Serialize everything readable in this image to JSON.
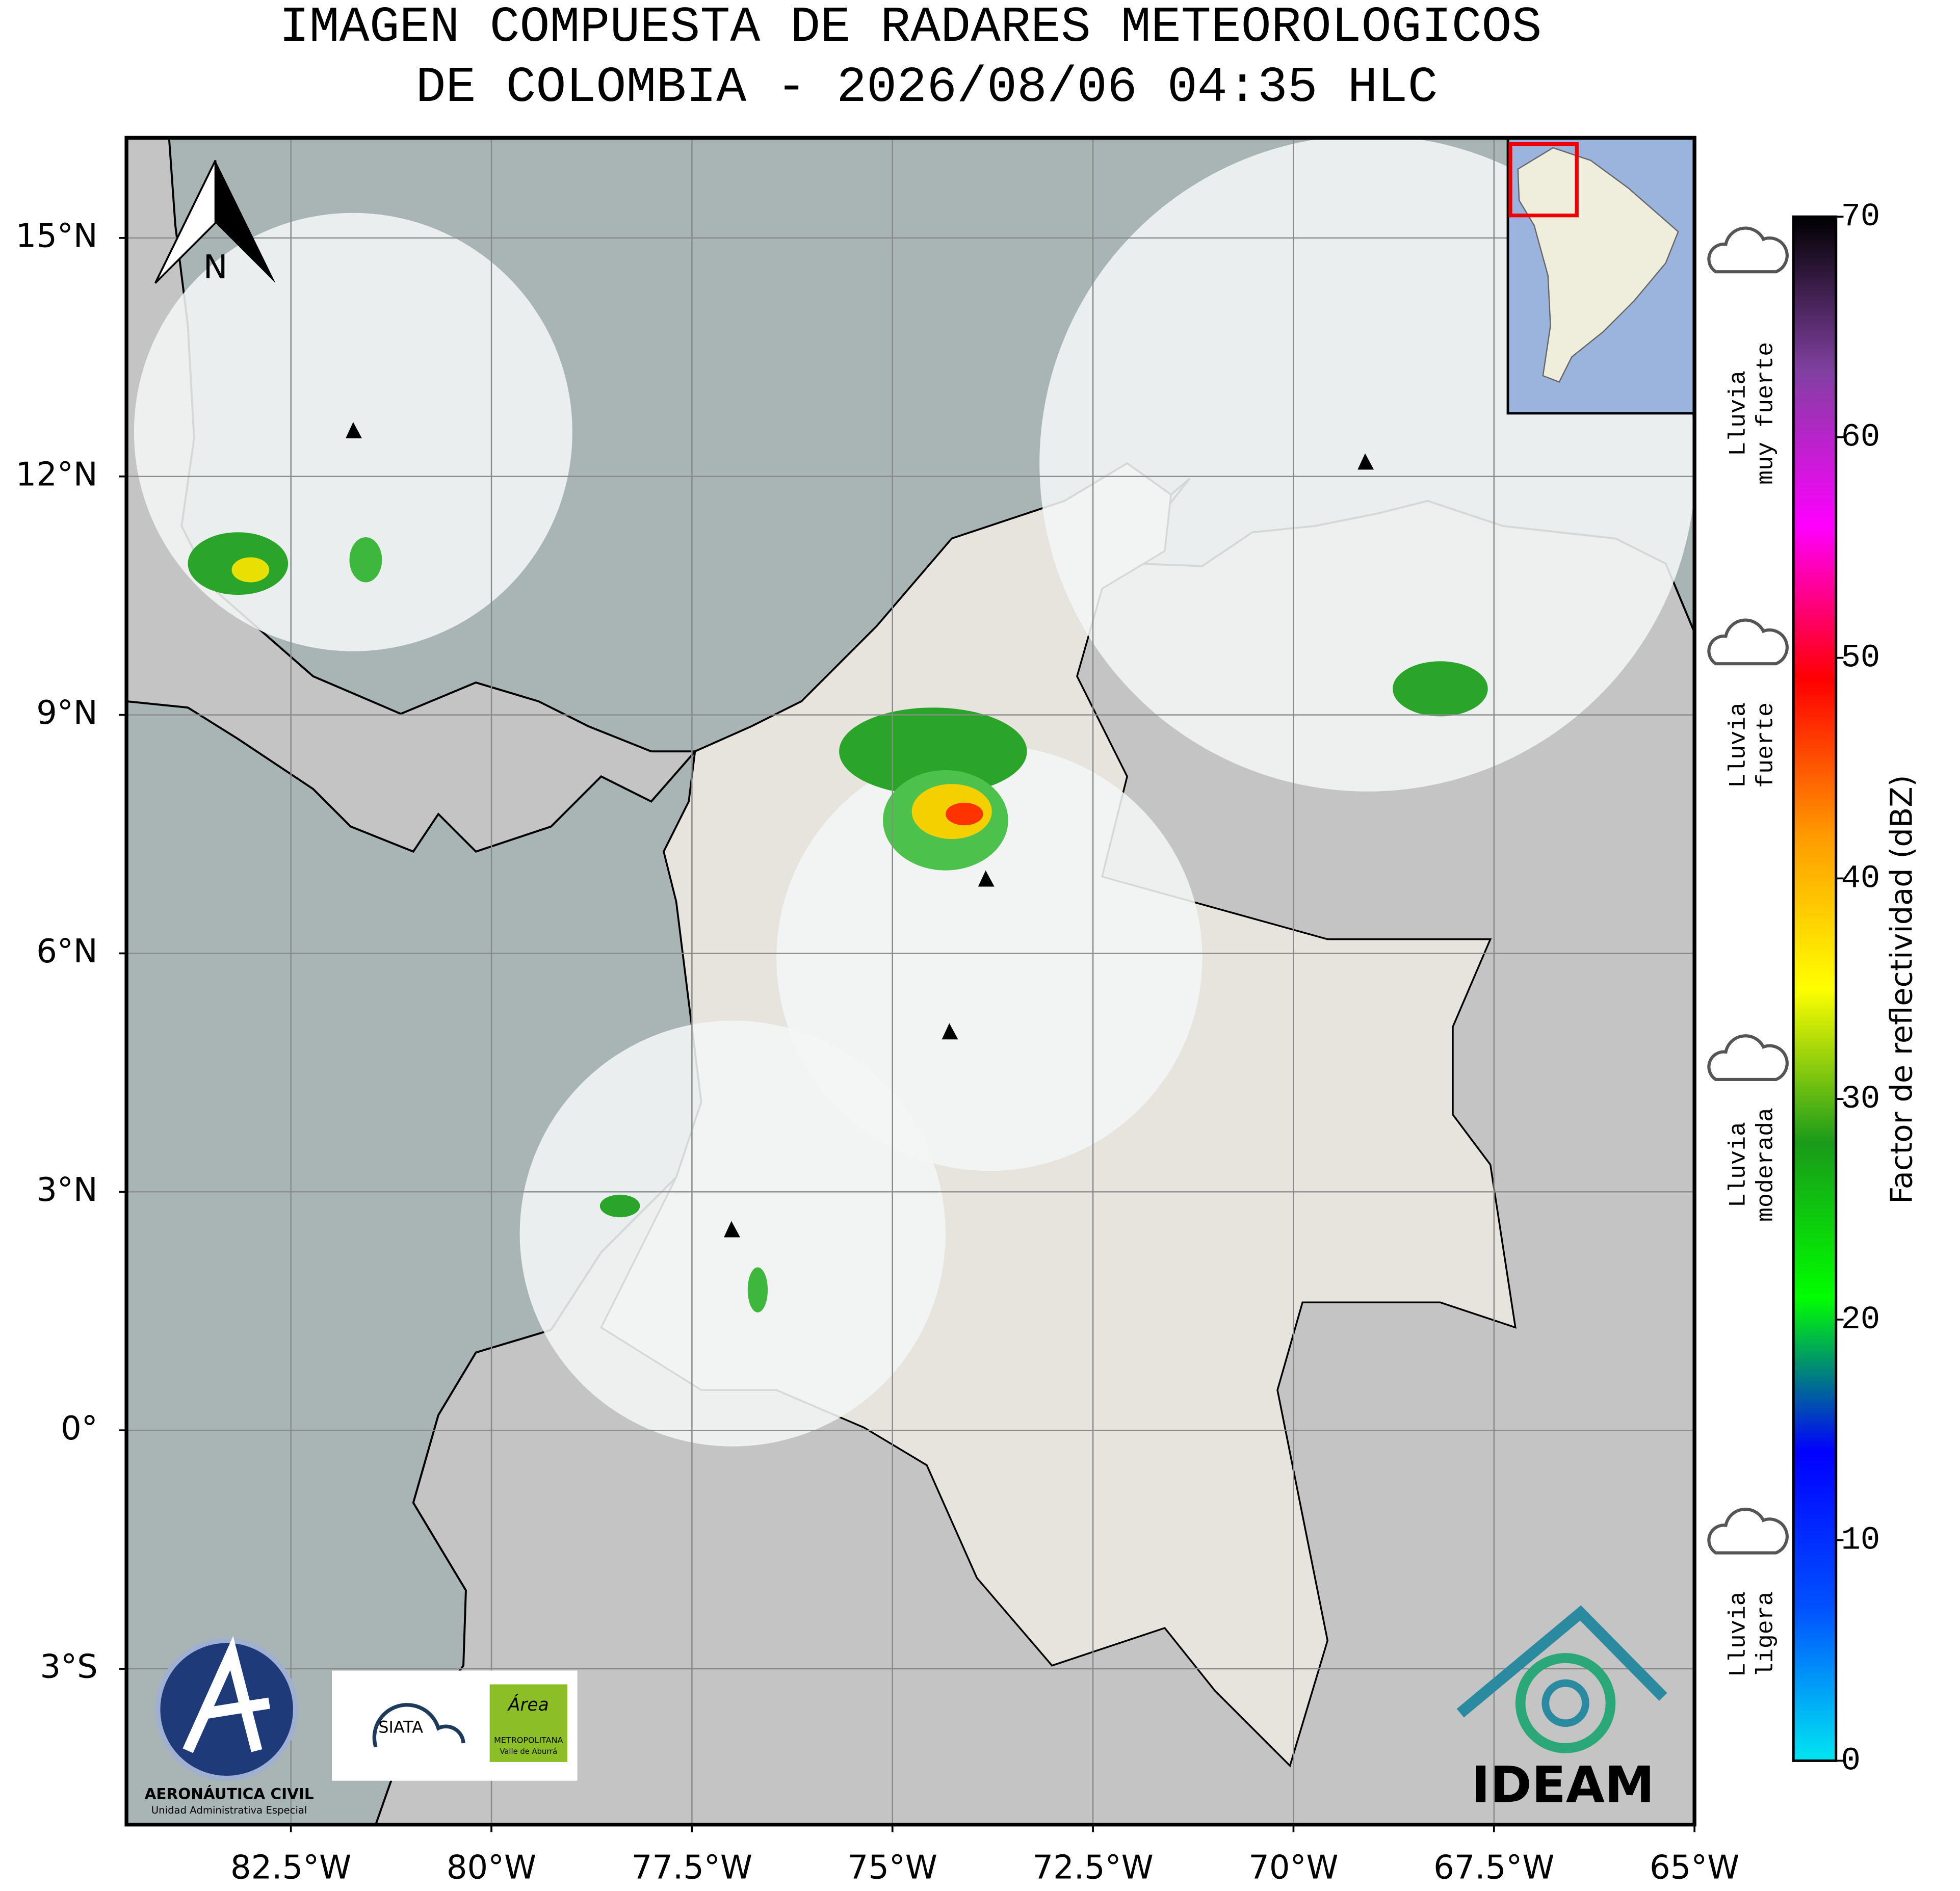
{
  "header": {
    "title_line1": "IMAGEN COMPUESTA DE RADARES METEOROLOGICOS",
    "title_line2": "DE COLOMBIA - 2026/08/06 04:35 HLC"
  },
  "map": {
    "xlim": [
      -84.55,
      -65
    ],
    "ylim": [
      -4.96,
      16.26
    ],
    "grid": true,
    "xticks": [
      {
        "value": -82.5,
        "label": "82.5°W"
      },
      {
        "value": -80,
        "label": "80°W"
      },
      {
        "value": -77.5,
        "label": "77.5°W"
      },
      {
        "value": -75,
        "label": "75°W"
      },
      {
        "value": -72.5,
        "label": "72.5°W"
      },
      {
        "value": -70,
        "label": "70°W"
      },
      {
        "value": -67.5,
        "label": "67.5°W"
      },
      {
        "value": -65,
        "label": "65°W"
      }
    ],
    "yticks": [
      {
        "value": 15,
        "label": "15°N"
      },
      {
        "value": 12,
        "label": "12°N"
      },
      {
        "value": 9,
        "label": "9°N"
      },
      {
        "value": 6,
        "label": "6°N"
      },
      {
        "value": 3,
        "label": "3°N"
      },
      {
        "value": 0,
        "label": "0°"
      },
      {
        "value": -3,
        "label": "3°S"
      }
    ],
    "north_arrow": "N"
  },
  "colorbar": {
    "label": "Factor de reflectividad (dBZ)",
    "lim": [
      0,
      70
    ],
    "ticks": [
      0,
      10,
      20,
      30,
      40,
      50,
      60,
      70
    ],
    "colors": [
      "#00e6f0",
      "#0050ff",
      "#0000ff",
      "#00ff00",
      "#1a9a1a",
      "#ffff00",
      "#ff9900",
      "#ff0000",
      "#ff00ff",
      "#8040a0",
      "#000000"
    ]
  },
  "intensity_labels": [
    [
      "Lluvia",
      "muy fuerte"
    ],
    [
      "Lluvia",
      "fuerte"
    ],
    [
      "Lluvia",
      "moderada"
    ],
    [
      "Lluvia",
      "ligera"
    ]
  ],
  "logos": {
    "aerocivil": "AERONÁUTICA CIVIL",
    "aerocivil_sub": "Unidad Administrativa Especial",
    "siata": "SIATA",
    "area": "Área",
    "area_sub1": "METROPOLITANA",
    "area_sub2": "Valle de Aburrá",
    "ideam": "IDEAM"
  }
}
